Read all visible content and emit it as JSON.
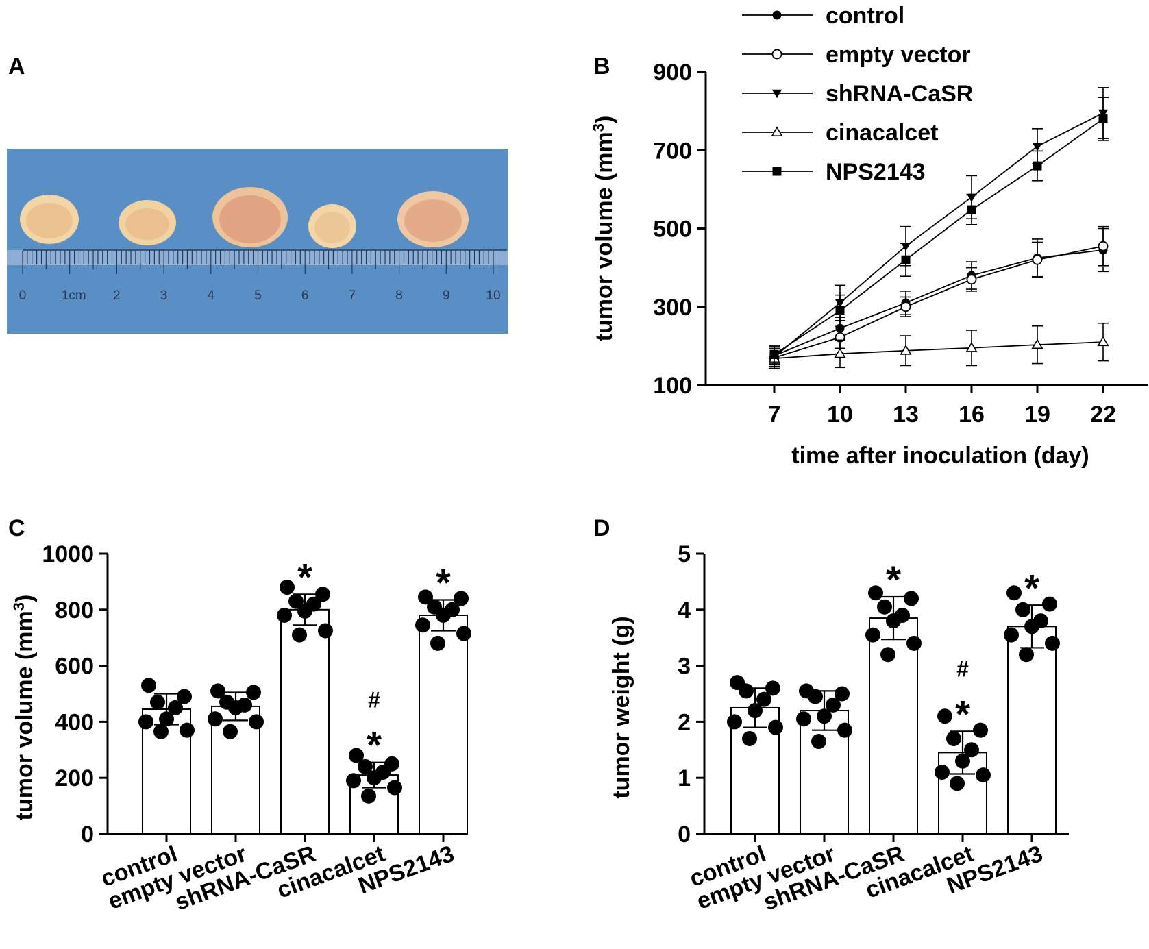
{
  "panels": {
    "a": {
      "letter": "A"
    },
    "b": {
      "letter": "B"
    },
    "c": {
      "letter": "C"
    },
    "d": {
      "letter": "D"
    }
  },
  "photo": {
    "background_color": "#5a8fc6",
    "ruler_labels": [
      "0",
      "1cm",
      "2",
      "3",
      "4",
      "5",
      "6",
      "7",
      "8",
      "9",
      "10"
    ]
  },
  "colors": {
    "ink": "#000000",
    "bar_fill": "#ffffff"
  },
  "chart_data": [
    {
      "id": "B",
      "type": "line",
      "title": "",
      "xlabel": "time after inoculation (day)",
      "ylabel": "tumor volume (mm",
      "ylabel_sup": "3",
      "ylabel_close": ")",
      "x": [
        7,
        10,
        13,
        16,
        19,
        22
      ],
      "xticks": [
        "7",
        "10",
        "13",
        "16",
        "19",
        "22"
      ],
      "yticks": [
        "100",
        "300",
        "500",
        "700",
        "900"
      ],
      "ylim": [
        100,
        900
      ],
      "legend_position": "top-left",
      "series": [
        {
          "name": "control",
          "marker": "filled-circle",
          "values": [
            175,
            245,
            310,
            380,
            425,
            445
          ],
          "errors": [
            22,
            28,
            30,
            35,
            48,
            55
          ]
        },
        {
          "name": "empty vector",
          "marker": "open-circle",
          "values": [
            170,
            222,
            300,
            370,
            420,
            455
          ],
          "errors": [
            22,
            28,
            25,
            30,
            45,
            50
          ]
        },
        {
          "name": "shRNA-CaSR",
          "marker": "filled-triangle-down",
          "values": [
            172,
            310,
            455,
            580,
            710,
            795
          ],
          "errors": [
            25,
            45,
            50,
            55,
            45,
            65
          ]
        },
        {
          "name": "cinacalcet",
          "marker": "open-triangle-up",
          "values": [
            168,
            180,
            188,
            195,
            203,
            210
          ],
          "errors": [
            25,
            35,
            38,
            45,
            48,
            48
          ]
        },
        {
          "name": "NPS2143",
          "marker": "filled-square",
          "values": [
            178,
            290,
            420,
            548,
            660,
            780
          ],
          "errors": [
            22,
            40,
            42,
            38,
            38,
            55
          ]
        }
      ]
    },
    {
      "id": "C",
      "type": "bar",
      "title": "",
      "xlabel": "",
      "ylabel": "tumor volume (mm",
      "ylabel_sup": "3",
      "ylabel_close": ")",
      "categories": [
        "control",
        "empty vector",
        "shRNA-CaSR",
        "cinacalcet",
        "NPS2143"
      ],
      "values": [
        445,
        455,
        800,
        210,
        780
      ],
      "errors": [
        55,
        50,
        55,
        45,
        55
      ],
      "points": [
        [
          530,
          490,
          470,
          450,
          410,
          400,
          370,
          365
        ],
        [
          510,
          505,
          470,
          460,
          450,
          410,
          400,
          365
        ],
        [
          880,
          855,
          830,
          820,
          795,
          780,
          725,
          710
        ],
        [
          280,
          250,
          240,
          220,
          200,
          190,
          165,
          135
        ],
        [
          845,
          840,
          810,
          800,
          780,
          745,
          715,
          680
        ]
      ],
      "annotations": [
        "",
        "",
        "*",
        "#\n*",
        "*"
      ],
      "yticks": [
        "0",
        "200",
        "400",
        "600",
        "800",
        "1000"
      ],
      "ylim": [
        0,
        1000
      ]
    },
    {
      "id": "D",
      "type": "bar",
      "title": "",
      "xlabel": "",
      "ylabel": "tumor weight (g)",
      "categories": [
        "control",
        "empty vector",
        "shRNA-CaSR",
        "cinacalcet",
        "NPS2143"
      ],
      "values": [
        2.25,
        2.2,
        3.85,
        1.45,
        3.7
      ],
      "errors": [
        0.35,
        0.35,
        0.38,
        0.38,
        0.38
      ],
      "points": [
        [
          2.7,
          2.6,
          2.55,
          2.4,
          2.2,
          2.0,
          1.9,
          1.7
        ],
        [
          2.55,
          2.5,
          2.45,
          2.3,
          2.1,
          2.05,
          1.85,
          1.65
        ],
        [
          4.3,
          4.2,
          4.05,
          3.9,
          3.8,
          3.55,
          3.4,
          3.2
        ],
        [
          2.1,
          1.85,
          1.7,
          1.5,
          1.3,
          1.1,
          1.05,
          0.9
        ],
        [
          4.3,
          4.1,
          4.0,
          3.8,
          3.7,
          3.55,
          3.4,
          3.2
        ]
      ],
      "annotations": [
        "",
        "",
        "*",
        "#\n*",
        "*"
      ],
      "yticks": [
        "0",
        "1",
        "2",
        "3",
        "4",
        "5"
      ],
      "ylim": [
        0,
        5
      ]
    }
  ]
}
